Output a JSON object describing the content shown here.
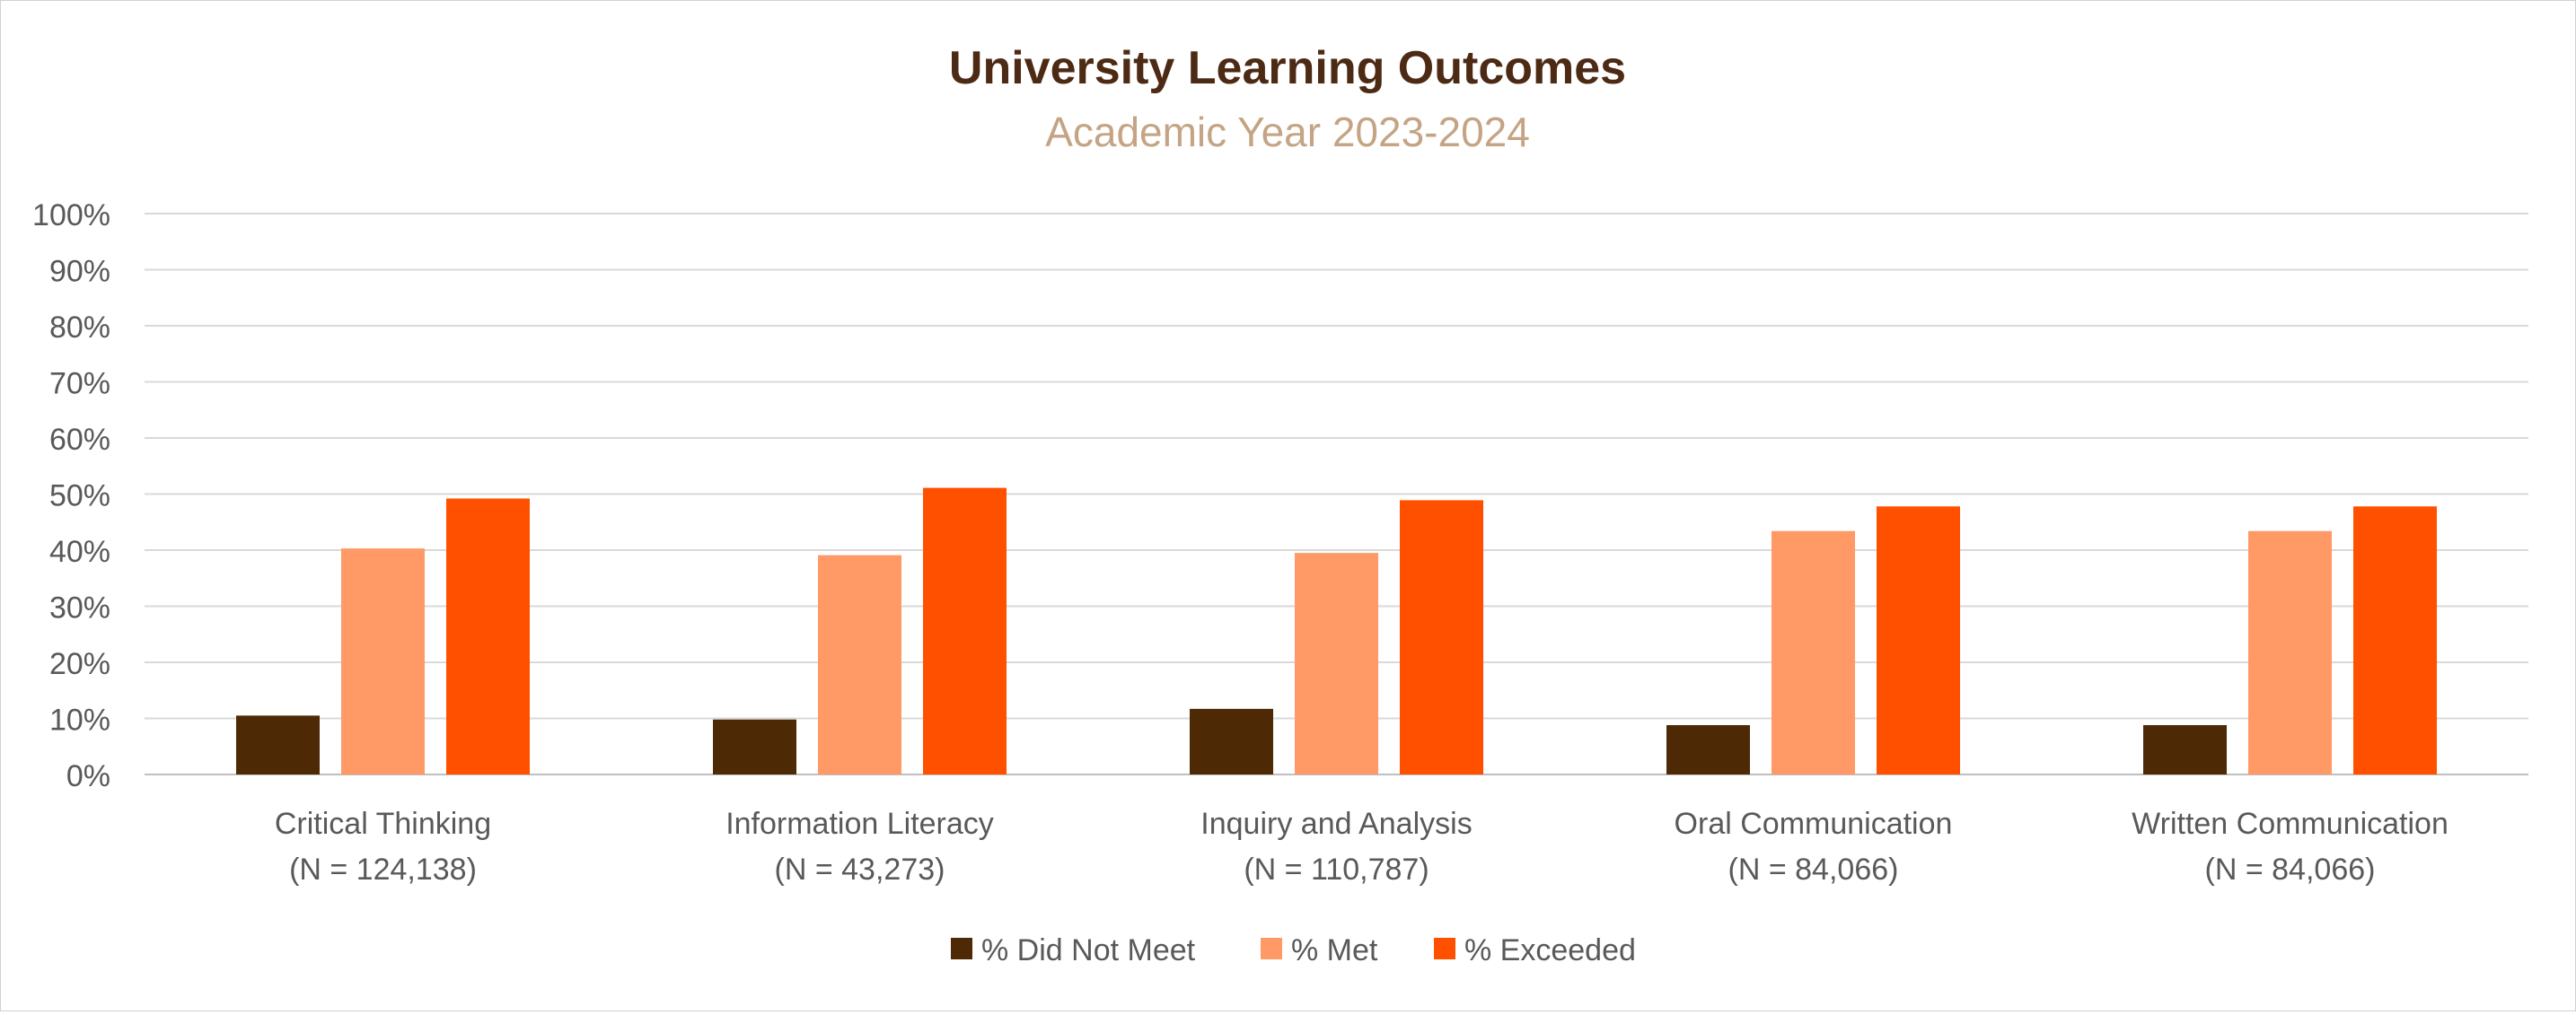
{
  "chart_data": {
    "type": "bar",
    "title": "University Learning Outcomes",
    "subtitle": "Academic Year 2023-2024",
    "xlabel": "",
    "ylabel": "",
    "ylim": [
      0,
      100
    ],
    "yticks": [
      0,
      10,
      20,
      30,
      40,
      50,
      60,
      70,
      80,
      90,
      100
    ],
    "ytick_suffix": "%",
    "grid": true,
    "legend_position": "bottom",
    "categories": [
      [
        "Critical Thinking",
        "(N = 124,138)"
      ],
      [
        "Information Literacy",
        "(N = 43,273)"
      ],
      [
        "Inquiry and Analysis",
        "(N = 110,787)"
      ],
      [
        "Oral Communication",
        "(N = 84,066)"
      ],
      [
        "Written Communication",
        "(N = 84,066)"
      ]
    ],
    "series": [
      {
        "name": "% Did Not Meet",
        "color": "#4d2a05",
        "values": [
          10.5,
          9.8,
          11.7,
          8.8,
          8.8
        ]
      },
      {
        "name": "% Met",
        "color": "#ff9966",
        "values": [
          40.3,
          39.1,
          39.5,
          43.4,
          43.4
        ]
      },
      {
        "name": "% Exceeded",
        "color": "#ff5000",
        "values": [
          49.2,
          51.1,
          48.9,
          47.8,
          47.8
        ]
      }
    ],
    "colors": {
      "title": "#4d2a14",
      "subtitle": "#c4a484",
      "axis_text": "#595959",
      "gridline": "#d9d9d9"
    }
  }
}
